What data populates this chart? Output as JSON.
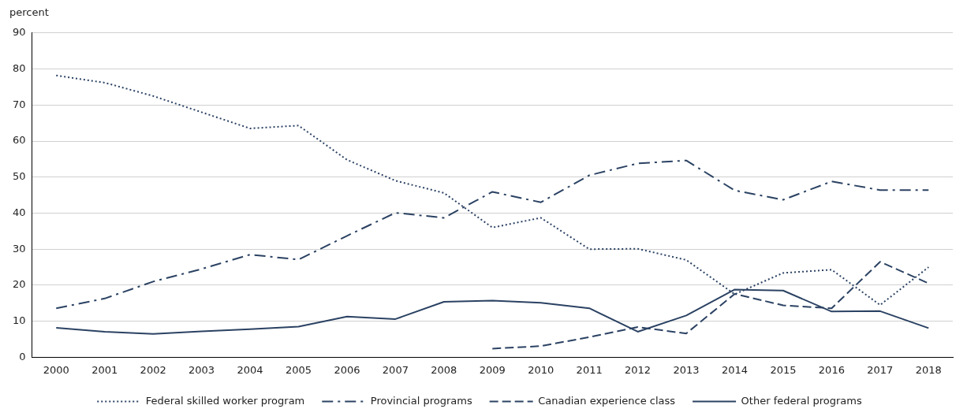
{
  "chart_data": {
    "type": "line",
    "ylabel": "percent",
    "categories": [
      "2000",
      "2001",
      "2002",
      "2003",
      "2004",
      "2005",
      "2006",
      "2007",
      "2008",
      "2009",
      "2010",
      "2011",
      "2012",
      "2013",
      "2014",
      "2015",
      "2016",
      "2017",
      "2018"
    ],
    "ylim": [
      0,
      90
    ],
    "yticks": [
      0,
      10,
      20,
      30,
      40,
      50,
      60,
      70,
      80,
      90
    ],
    "grid": "y",
    "legend": "bottom",
    "marker": "none",
    "series": [
      {
        "name": "Federal skilled worker program",
        "color": "#2b4263",
        "line_style": "dotted",
        "values": [
          78.2,
          76.2,
          72.5,
          68,
          63.5,
          64.3,
          54.8,
          49,
          45.6,
          36,
          38.7,
          30,
          30.1,
          27,
          17.5,
          23.4,
          24.3,
          14.5,
          25
        ]
      },
      {
        "name": "Provincial programs",
        "color": "#2b4263",
        "line_style": "dashdot",
        "values": [
          13.6,
          16.3,
          21,
          24.5,
          28.5,
          27.1,
          33.7,
          40.1,
          38.7,
          45.9,
          43,
          50.5,
          53.8,
          54.6,
          46.3,
          43.7,
          48.8,
          46.4,
          46.4
        ]
      },
      {
        "name": "Canadian experience class",
        "color": "#2b4263",
        "line_style": "dashed",
        "values": [
          null,
          null,
          null,
          null,
          null,
          null,
          null,
          null,
          null,
          2.4,
          3.1,
          5.6,
          8.4,
          6.6,
          17.6,
          14.4,
          13.6,
          26.5,
          20.5
        ]
      },
      {
        "name": "Other federal programs",
        "color": "#2b4263",
        "line_style": "solid",
        "values": [
          8.2,
          7.1,
          6.5,
          7.2,
          7.8,
          8.5,
          11.3,
          10.6,
          15.4,
          15.7,
          15.1,
          13.6,
          7.1,
          11.6,
          18.8,
          18.5,
          12.7,
          12.8,
          8.1
        ]
      }
    ]
  }
}
